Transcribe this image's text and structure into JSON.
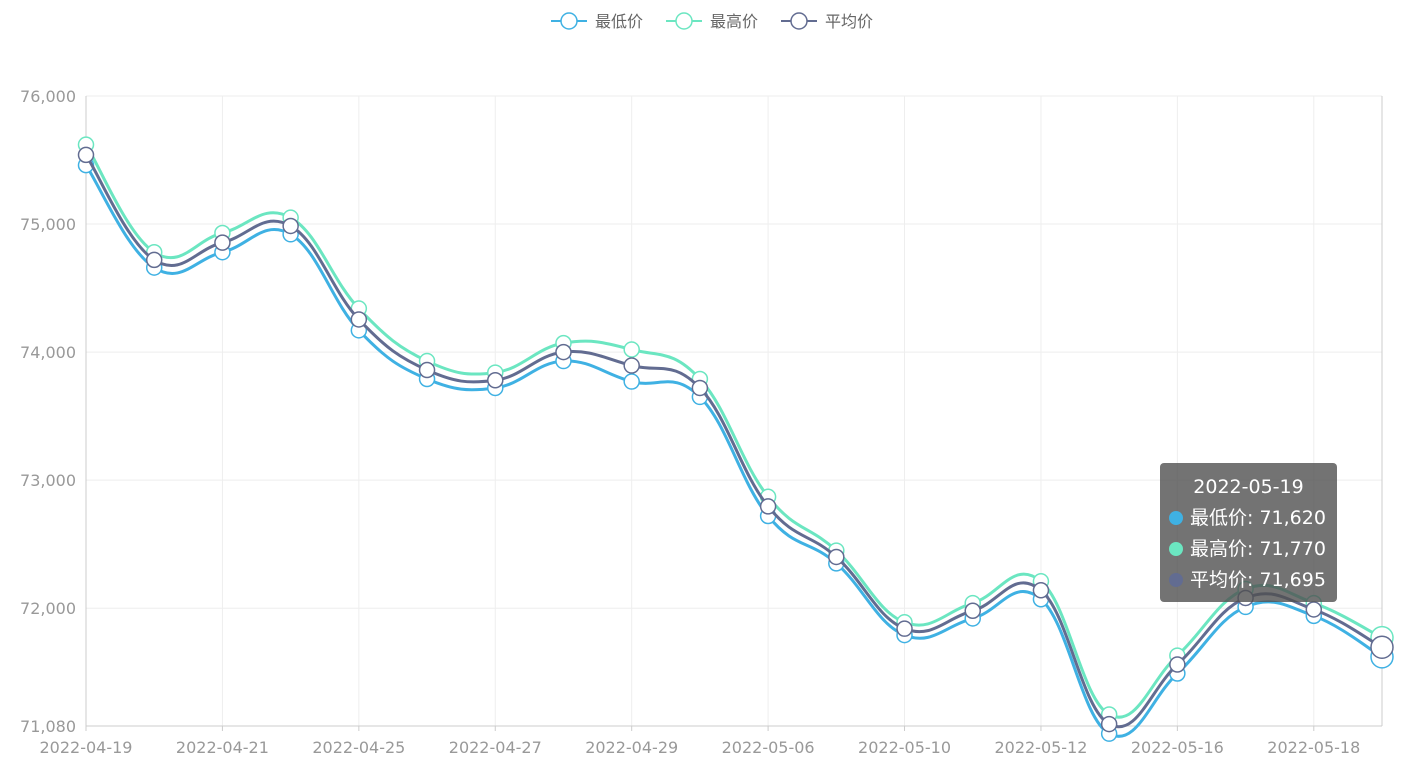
{
  "chart_data": {
    "type": "line",
    "smooth": true,
    "x": [
      "2022-04-19",
      "2022-04-20",
      "2022-04-21",
      "2022-04-22",
      "2022-04-25",
      "2022-04-26",
      "2022-04-27",
      "2022-04-28",
      "2022-04-29",
      "2022-05-05",
      "2022-05-06",
      "2022-05-09",
      "2022-05-10",
      "2022-05-11",
      "2022-05-12",
      "2022-05-13",
      "2022-05-16",
      "2022-05-17",
      "2022-05-18",
      "2022-05-19"
    ],
    "x_tick_labels": [
      "2022-04-19",
      "2022-04-21",
      "2022-04-25",
      "2022-04-27",
      "2022-04-29",
      "2022-05-06",
      "2022-05-10",
      "2022-05-12",
      "2022-05-16",
      "2022-05-18"
    ],
    "y_ticks": [
      "71,080",
      "72,000",
      "73,000",
      "74,000",
      "75,000",
      "76,000"
    ],
    "ylim": [
      71080,
      76000
    ],
    "grid": true,
    "legend_position": "top-center",
    "series": [
      {
        "name": "最低价",
        "color": "#3fb1e3",
        "values": [
          75460,
          74660,
          74780,
          74920,
          74170,
          73790,
          73720,
          73930,
          73770,
          73650,
          72720,
          72350,
          71790,
          71920,
          72070,
          71020,
          71490,
          72010,
          71940,
          71620
        ]
      },
      {
        "name": "最高价",
        "color": "#6be6c1",
        "values": [
          75620,
          74780,
          74930,
          75050,
          74340,
          73930,
          73840,
          74070,
          74020,
          73790,
          72870,
          72450,
          71890,
          72040,
          72210,
          71170,
          71630,
          72150,
          72040,
          71770
        ]
      },
      {
        "name": "平均价",
        "color": "#626c91",
        "values": [
          75540,
          74720,
          74855,
          74985,
          74255,
          73860,
          73780,
          74000,
          73895,
          73720,
          72795,
          72400,
          71840,
          71980,
          72140,
          71095,
          71560,
          72080,
          71990,
          71695
        ]
      }
    ]
  },
  "tooltip": {
    "title": "2022-05-19",
    "rows": [
      {
        "label": "最低价: 71,620",
        "color": "#3fb1e3"
      },
      {
        "label": "最高价: 71,770",
        "color": "#6be6c1"
      },
      {
        "label": "平均价: 71,695",
        "color": "#626c91"
      }
    ]
  }
}
